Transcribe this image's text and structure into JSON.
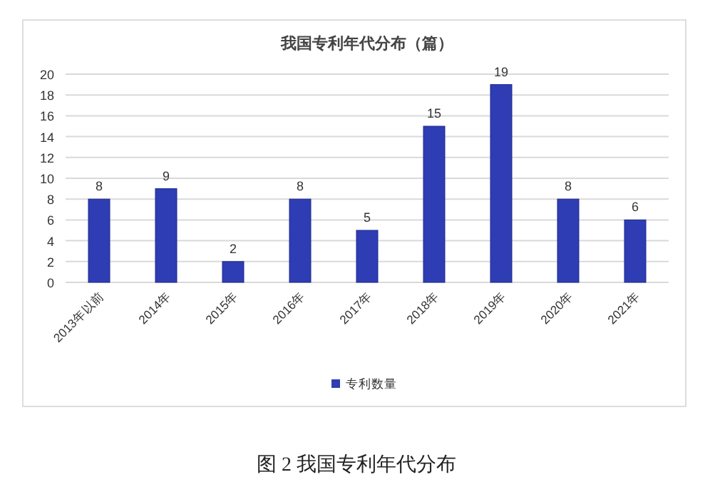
{
  "chart_data": {
    "type": "bar",
    "title": "我国专利年代分布（篇）",
    "categories": [
      "2013年以前",
      "2014年",
      "2015年",
      "2016年",
      "2017年",
      "2018年",
      "2019年",
      "2020年",
      "2021年"
    ],
    "series": [
      {
        "name": "专利数量",
        "color": "#2e3db4",
        "values": [
          8,
          9,
          2,
          8,
          5,
          15,
          19,
          8,
          6
        ]
      }
    ],
    "ylim": [
      0,
      20
    ],
    "yticks": [
      0,
      2,
      4,
      6,
      8,
      10,
      12,
      14,
      16,
      18,
      20
    ],
    "grid": "y",
    "legend": "bottom",
    "data_labels": true,
    "annotations": [
      "图 2  我国专利年代分布"
    ]
  }
}
